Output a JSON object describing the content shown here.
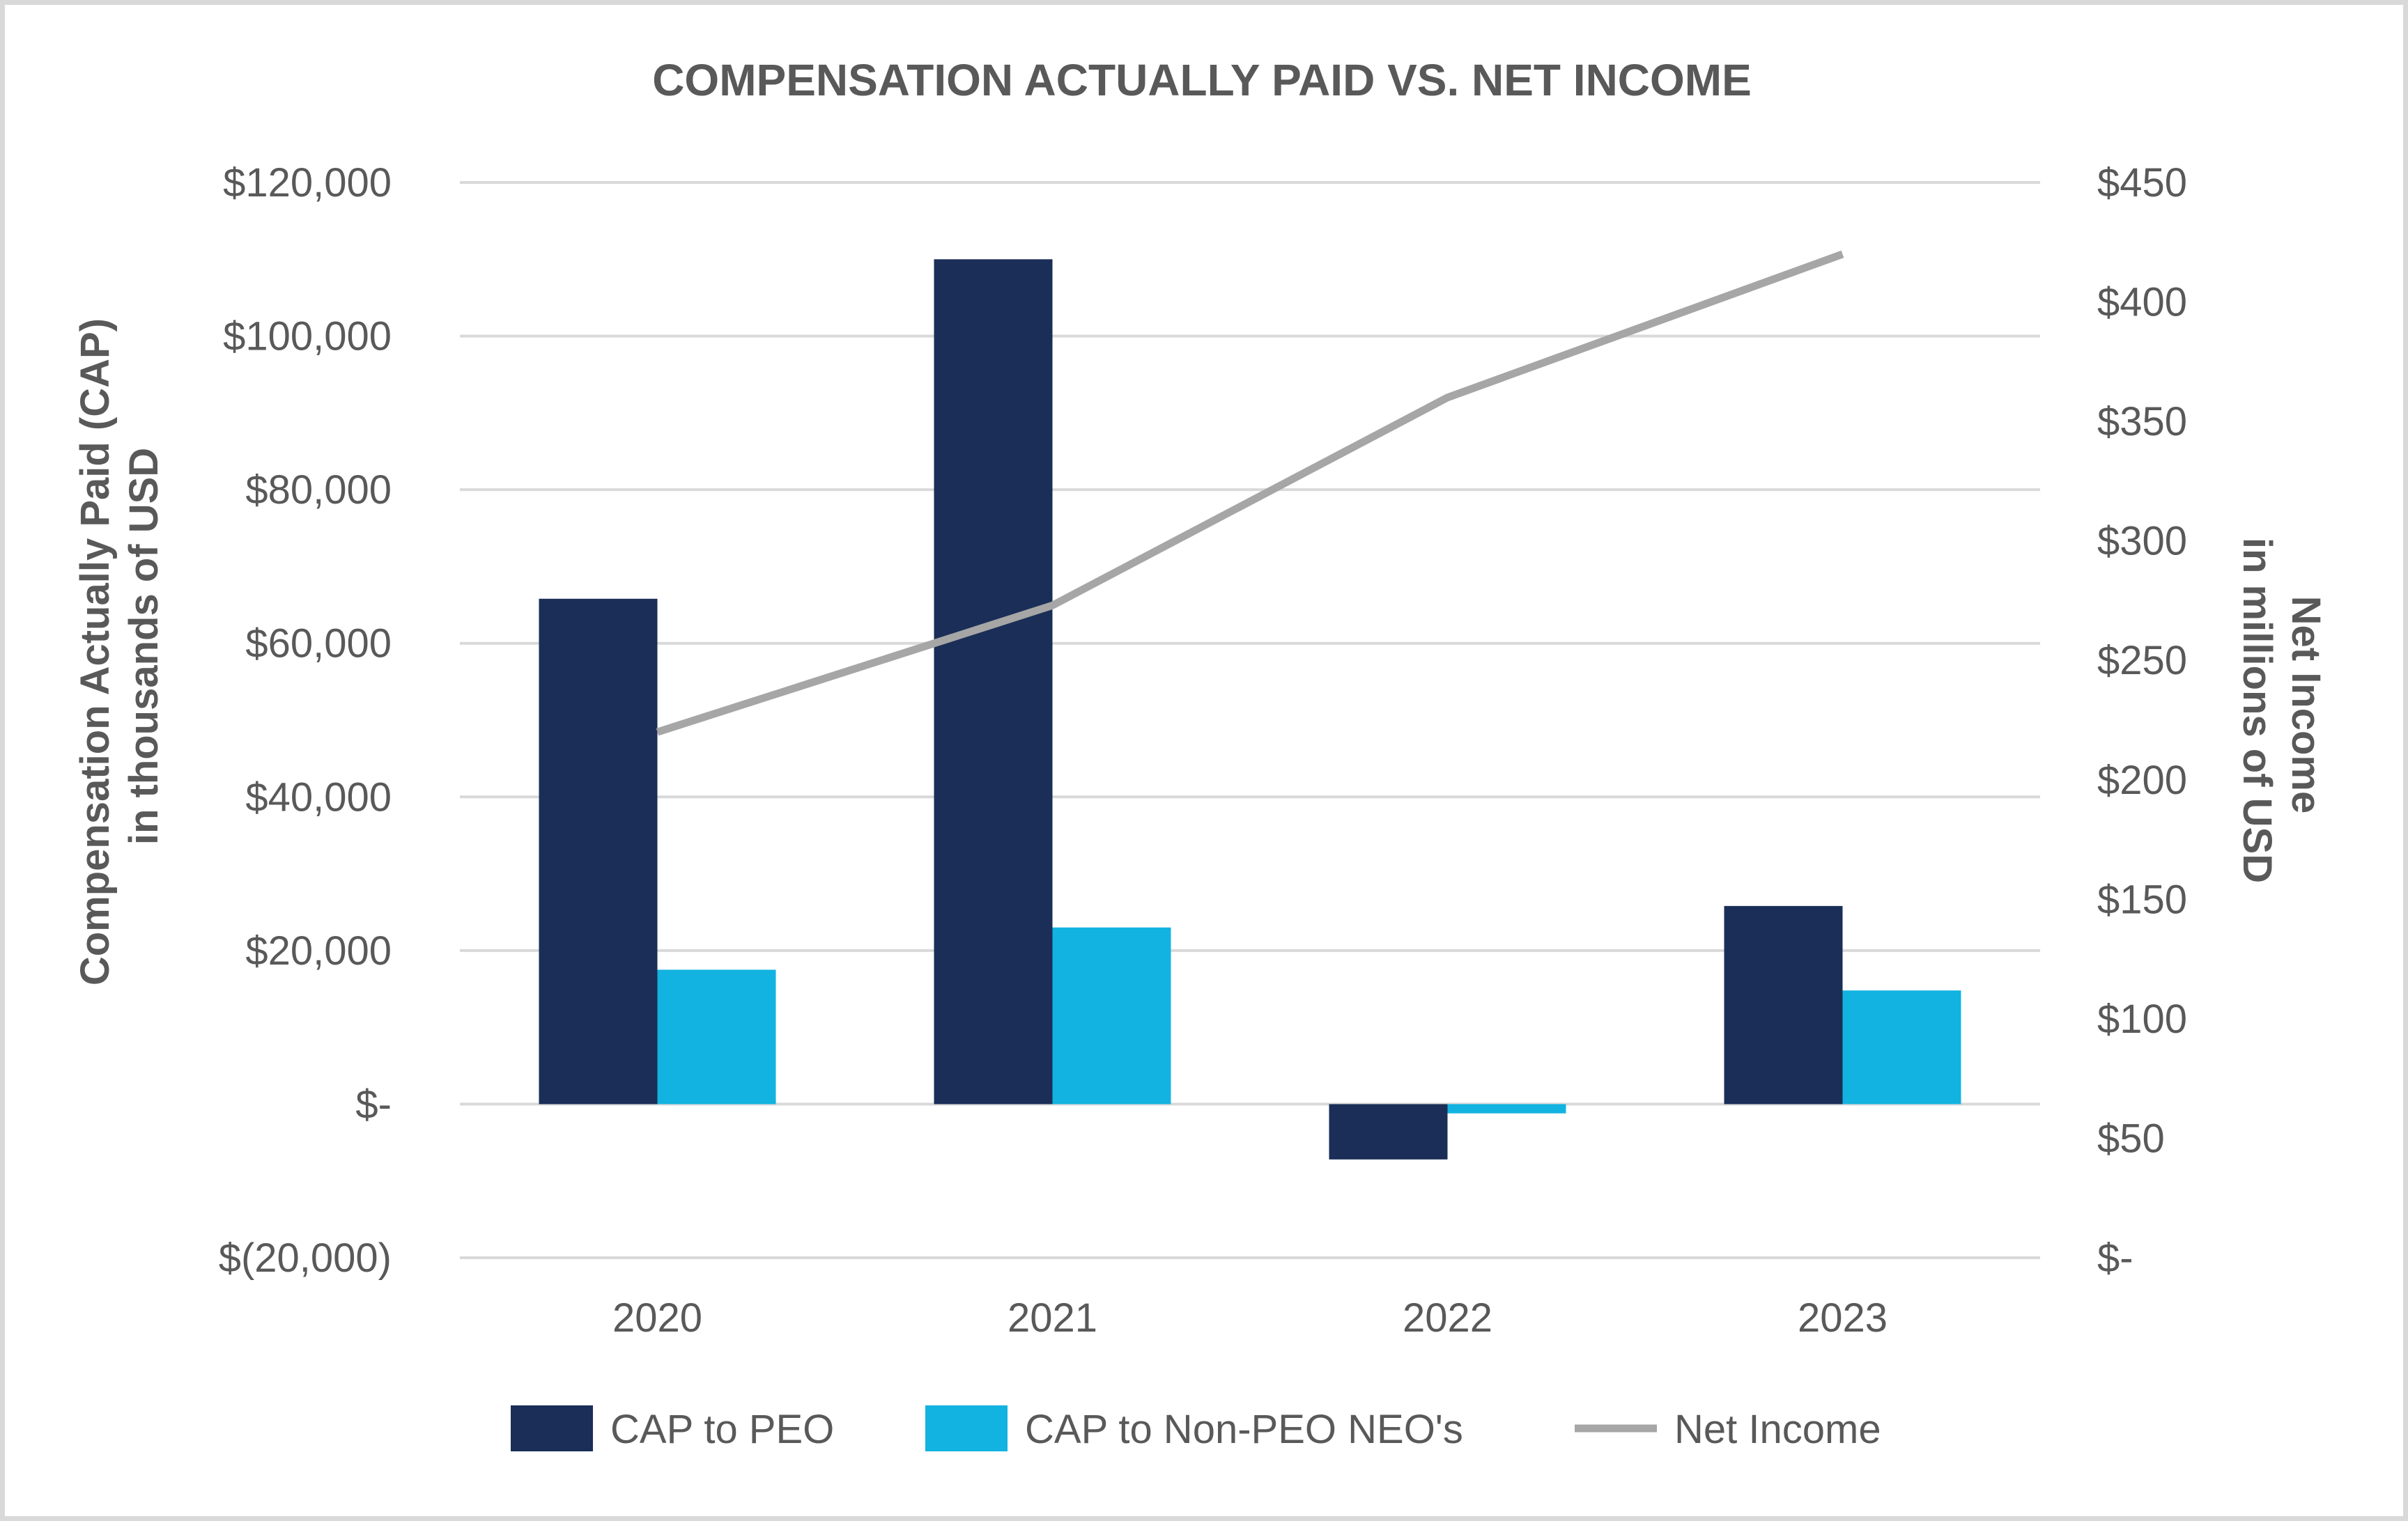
{
  "chart_data": {
    "type": "bar",
    "title": "COMPENSATION ACTUALLY PAID VS. NET INCOME",
    "categories": [
      "2020",
      "2021",
      "2022",
      "2023"
    ],
    "series": [
      {
        "name": "CAP to PEO",
        "type": "bar",
        "axis": "left",
        "color": "#1a2e57",
        "values": [
          65800,
          110000,
          -7200,
          25800
        ]
      },
      {
        "name": "CAP to Non-PEO NEO's",
        "type": "bar",
        "axis": "left",
        "color": "#12b3e0",
        "values": [
          17500,
          23000,
          -1200,
          14800
        ]
      },
      {
        "name": "Net Income",
        "type": "line",
        "axis": "right",
        "color": "#a6a6a6",
        "values": [
          220,
          273,
          360,
          420
        ]
      }
    ],
    "ylabel_left": [
      "Compensation Actually Paid (CAP)",
      "in thousands of USD"
    ],
    "ylabel_right": [
      "Net Income",
      "in millions of USD"
    ],
    "ylim_left": [
      -20000,
      120000
    ],
    "ylim_right": [
      0,
      450
    ],
    "yticks_left": [
      {
        "value": 120000,
        "label": "$120,000"
      },
      {
        "value": 100000,
        "label": "$100,000"
      },
      {
        "value": 80000,
        "label": "$80,000"
      },
      {
        "value": 60000,
        "label": "$60,000"
      },
      {
        "value": 40000,
        "label": "$40,000"
      },
      {
        "value": 20000,
        "label": "$20,000"
      },
      {
        "value": 0,
        "label": "$-"
      },
      {
        "value": -20000,
        "label": "$(20,000)"
      }
    ],
    "yticks_right": [
      {
        "value": 450,
        "label": "$450"
      },
      {
        "value": 400,
        "label": "$400"
      },
      {
        "value": 350,
        "label": "$350"
      },
      {
        "value": 300,
        "label": "$300"
      },
      {
        "value": 250,
        "label": "$250"
      },
      {
        "value": 200,
        "label": "$200"
      },
      {
        "value": 150,
        "label": "$150"
      },
      {
        "value": 100,
        "label": "$100"
      },
      {
        "value": 50,
        "label": "$50"
      },
      {
        "value": 0,
        "label": "$-"
      }
    ],
    "grid": true,
    "legend_position": "bottom"
  }
}
